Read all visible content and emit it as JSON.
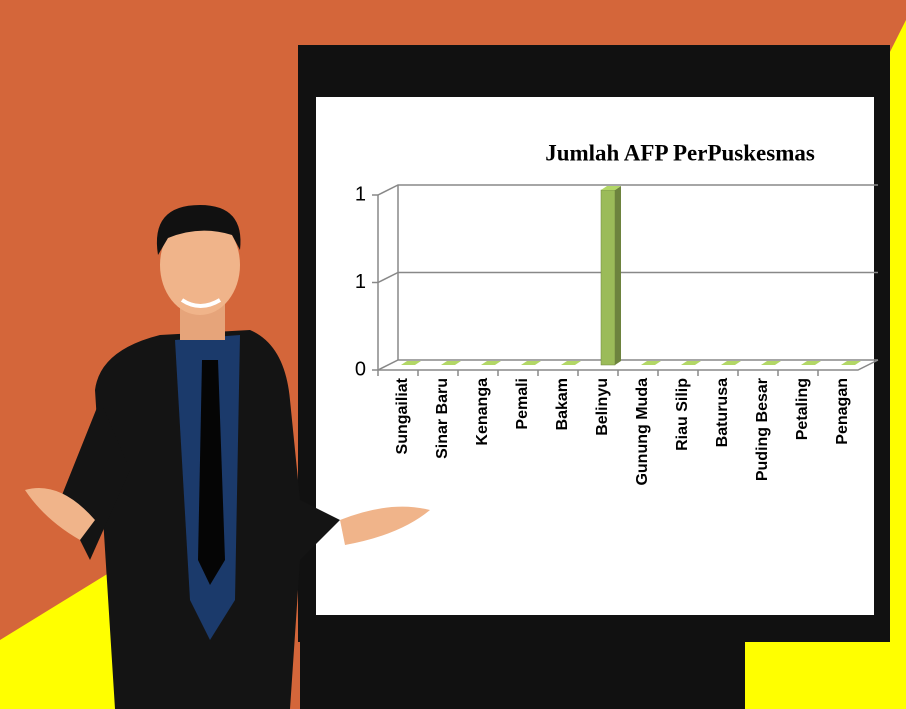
{
  "chart_data": {
    "type": "bar",
    "title": "Jumlah AFP PerPuskesmas",
    "categories": [
      "Sungailiat",
      "Sinar Baru",
      "Kenanga",
      "Pemali",
      "Bakam",
      "Belinyu",
      "Gunung Muda",
      "Riau Silip",
      "Baturusa",
      "Puding Besar",
      "Petaling",
      "Penagan"
    ],
    "values": [
      0,
      0,
      0,
      0,
      0,
      1,
      0,
      0,
      0,
      0,
      0,
      0
    ],
    "color": "#9bbb59",
    "ylim": [
      0,
      1
    ],
    "yticks": [
      0,
      {
        "value": 0.5,
        "label": "1"
      },
      {
        "value": 1,
        "label": "1"
      }
    ],
    "grid": true
  }
}
